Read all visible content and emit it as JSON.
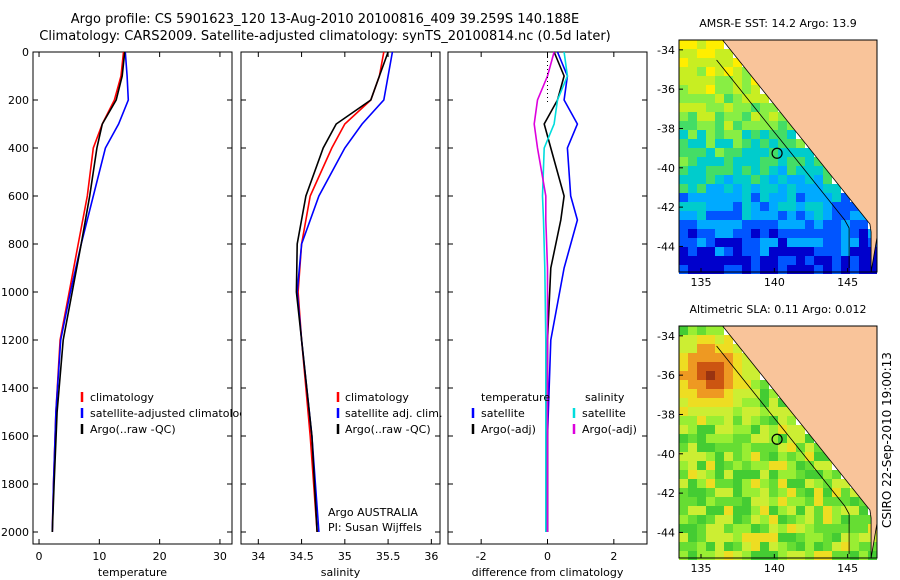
{
  "header": {
    "title_line1": "Argo profile: CS 5901623_120 13-Aug-2010 20100816_409 39.259S 140.188E",
    "title_line2": "Climatology: CARS2009. Satellite-adjusted climatology: synTS_20100814.nc (0.5d later)"
  },
  "side_stamp": "CSIRO 22-Sep-2010 19:00:13",
  "colors": {
    "climatology": "#ff0000",
    "satellite": "#0000ff",
    "argo": "#000000",
    "temp_sat_diff": "#00dddd",
    "argo_adj_diff": "#dd00dd",
    "land": "#f9c49a"
  },
  "chart_data": [
    {
      "type": "line",
      "panel": "temperature",
      "xlabel": "temperature",
      "xlim": [
        -1,
        32
      ],
      "ylim": [
        2050,
        0
      ],
      "xticks": [
        "0",
        "10",
        "20",
        "30"
      ],
      "xtick_values": [
        0,
        10,
        20,
        30
      ],
      "yticks": [
        "0",
        "200",
        "400",
        "600",
        "800",
        "1000",
        "1200",
        "1400",
        "1600",
        "1800",
        "2000"
      ],
      "ytick_values": [
        0,
        200,
        400,
        600,
        800,
        1000,
        1200,
        1400,
        1600,
        1800,
        2000
      ],
      "legend": [
        "climatology",
        "satellite-adjusted climatology",
        "Argo(..raw -QC)"
      ],
      "series": [
        {
          "name": "climatology",
          "color": "#ff0000",
          "x": [
            14.0,
            13.6,
            12.5,
            10.5,
            9.0,
            8.0,
            6.5,
            5.0,
            3.5,
            2.8,
            2.4,
            2.2
          ],
          "y": [
            0,
            100,
            200,
            300,
            400,
            600,
            800,
            1000,
            1200,
            1500,
            1800,
            2000
          ]
        },
        {
          "name": "satellite-adjusted climatology",
          "color": "#0000ff",
          "x": [
            14.3,
            14.6,
            14.8,
            13.2,
            11.0,
            9.0,
            7.0,
            5.2,
            3.6,
            2.8,
            2.4,
            2.2
          ],
          "y": [
            0,
            100,
            200,
            300,
            400,
            600,
            800,
            1000,
            1200,
            1500,
            1800,
            2000
          ]
        },
        {
          "name": "Argo(..raw -QC)",
          "color": "#000000",
          "x": [
            14.2,
            13.8,
            12.8,
            10.5,
            9.6,
            8.4,
            7.0,
            5.5,
            4.0,
            3.0,
            2.5,
            2.2
          ],
          "y": [
            0,
            100,
            200,
            300,
            400,
            600,
            800,
            1000,
            1200,
            1500,
            1800,
            2000
          ]
        }
      ]
    },
    {
      "type": "line",
      "panel": "salinity",
      "xlabel": "salinity",
      "xlim": [
        33.8,
        36.1
      ],
      "ylim": [
        2050,
        0
      ],
      "xticks": [
        "34",
        "34.5",
        "35",
        "35.5",
        "36"
      ],
      "xtick_values": [
        34,
        34.5,
        35,
        35.5,
        36
      ],
      "legend": [
        "climatology",
        "satellite adj. clim.",
        "Argo(..raw -QC)"
      ],
      "annotation_line1": "Argo AUSTRALIA",
      "annotation_line2": "PI: Susan Wijffels",
      "series": [
        {
          "name": "climatology",
          "color": "#ff0000",
          "x": [
            35.45,
            35.4,
            35.3,
            35.0,
            34.85,
            34.6,
            34.5,
            34.46,
            34.5,
            34.6,
            34.68
          ],
          "y": [
            0,
            100,
            200,
            300,
            400,
            600,
            800,
            1000,
            1200,
            1600,
            2000
          ]
        },
        {
          "name": "satellite adj. clim.",
          "color": "#0000ff",
          "x": [
            35.55,
            35.5,
            35.45,
            35.2,
            35.0,
            34.7,
            34.5,
            34.45,
            34.5,
            34.62,
            34.7
          ],
          "y": [
            0,
            100,
            200,
            300,
            400,
            600,
            800,
            1000,
            1200,
            1600,
            2000
          ]
        },
        {
          "name": "Argo(..raw -QC)",
          "color": "#000000",
          "x": [
            35.5,
            35.4,
            35.3,
            34.9,
            34.75,
            34.55,
            34.45,
            34.44,
            34.5,
            34.62,
            34.68
          ],
          "y": [
            0,
            100,
            200,
            300,
            400,
            600,
            800,
            1000,
            1200,
            1600,
            2000
          ]
        }
      ]
    },
    {
      "type": "line",
      "panel": "difference",
      "xlabel": "difference from climatology",
      "xlim": [
        -3,
        3
      ],
      "ylim": [
        2050,
        0
      ],
      "xticks": [
        "-2",
        "0",
        "2"
      ],
      "xtick_values": [
        -2,
        0,
        2
      ],
      "legend_col1_title": "temperature",
      "legend_col2_title": "salinity",
      "legend_col1": [
        "satellite",
        "Argo(-adj)"
      ],
      "legend_col2": [
        "satellite",
        "Argo(-adj)"
      ],
      "series": [
        {
          "name": "temperature satellite",
          "color": "#0000ff",
          "x": [
            0.3,
            0.6,
            0.5,
            0.9,
            0.6,
            0.7,
            0.9,
            0.5,
            0.1,
            0.0,
            0.0
          ],
          "y": [
            0,
            100,
            200,
            300,
            400,
            600,
            700,
            900,
            1200,
            1600,
            2000
          ]
        },
        {
          "name": "temperature Argo(-adj)",
          "color": "#000000",
          "x": [
            0.2,
            0.5,
            0.3,
            -0.1,
            0.1,
            0.5,
            0.4,
            0.1,
            0.0,
            0.0,
            0.0
          ],
          "y": [
            0,
            100,
            200,
            300,
            400,
            600,
            700,
            900,
            1200,
            1600,
            2000
          ]
        },
        {
          "name": "salinity satellite",
          "color": "#00dddd",
          "x": [
            0.5,
            0.6,
            0.3,
            0.2,
            -0.1,
            -0.15,
            -0.12,
            -0.08,
            -0.05,
            -0.05,
            -0.05
          ],
          "y": [
            0,
            100,
            200,
            300,
            400,
            600,
            700,
            900,
            1200,
            1600,
            2000
          ]
        },
        {
          "name": "salinity Argo(-adj)",
          "color": "#dd00dd",
          "x": [
            0.2,
            0.0,
            -0.3,
            -0.4,
            -0.3,
            -0.05,
            -0.05,
            0.0,
            0.0,
            0.0,
            0.0
          ],
          "y": [
            0,
            100,
            200,
            300,
            400,
            600,
            700,
            900,
            1200,
            1600,
            2000
          ]
        }
      ]
    },
    {
      "type": "heatmap",
      "panel": "sst_map",
      "title": "AMSR-E SST: 14.2 Argo: 13.9",
      "xlim": [
        133.5,
        147
      ],
      "ylim": [
        -45.3,
        -33.5
      ],
      "xticks": [
        "135",
        "140",
        "145"
      ],
      "xtick_values": [
        135,
        140,
        145
      ],
      "yticks": [
        "-34",
        "-36",
        "-38",
        "-40",
        "-42",
        "-44"
      ],
      "ytick_values": [
        -34,
        -36,
        -38,
        -40,
        -42,
        -44
      ],
      "float_position": [
        140.188,
        -39.259
      ],
      "palette": [
        "#0000cc",
        "#0055ff",
        "#00aaff",
        "#00cccc",
        "#44dd66",
        "#88ee44",
        "#c8ee22",
        "#ffee00"
      ]
    },
    {
      "type": "heatmap",
      "panel": "sla_map",
      "title": "Altimetric SLA: 0.11 Argo: 0.012",
      "xlim": [
        133.5,
        147
      ],
      "ylim": [
        -45.3,
        -33.5
      ],
      "xticks": [
        "135",
        "140",
        "145"
      ],
      "xtick_values": [
        135,
        140,
        145
      ],
      "yticks": [
        "-34",
        "-36",
        "-38",
        "-40",
        "-42",
        "-44"
      ],
      "ytick_values": [
        -34,
        -36,
        -38,
        -40,
        -42,
        -44
      ],
      "float_position": [
        140.188,
        -39.259
      ],
      "palette": [
        "#44cc33",
        "#66dd33",
        "#99ee33",
        "#ccee33",
        "#eedd22",
        "#ee9922",
        "#cc5511",
        "#993311"
      ]
    }
  ]
}
